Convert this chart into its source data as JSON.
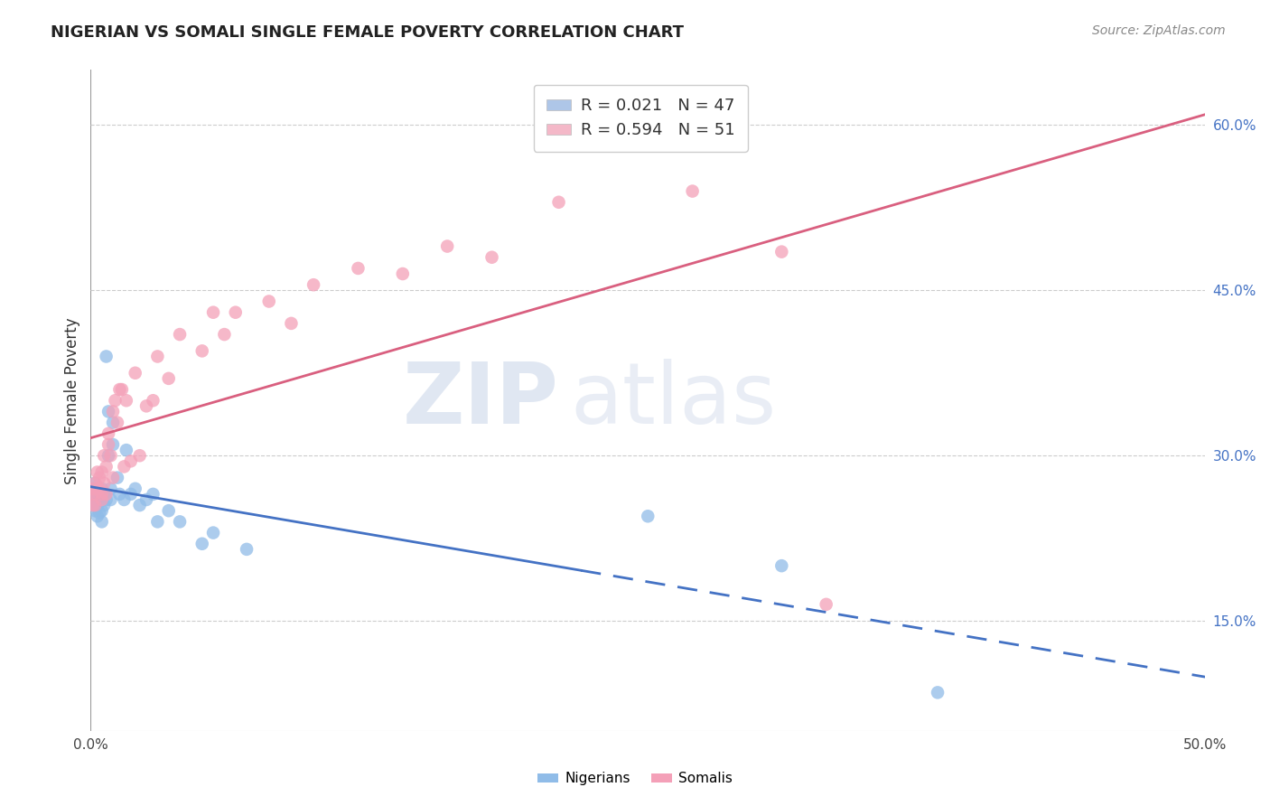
{
  "title": "NIGERIAN VS SOMALI SINGLE FEMALE POVERTY CORRELATION CHART",
  "source": "Source: ZipAtlas.com",
  "ylabel": "Single Female Poverty",
  "right_yticks": [
    0.15,
    0.3,
    0.45,
    0.6
  ],
  "right_ytick_labels": [
    "15.0%",
    "30.0%",
    "45.0%",
    "60.0%"
  ],
  "legend_bottom": [
    "Nigerians",
    "Somalis"
  ],
  "nigerian_color": "#90bce8",
  "somali_color": "#f4a0b8",
  "nigerian_line_color": "#4472c4",
  "somali_line_color": "#d95f7f",
  "watermark_zip": "ZIP",
  "watermark_atlas": "atlas",
  "ylim": [
    0.05,
    0.65
  ],
  "xlim": [
    0.0,
    0.5
  ],
  "nigerian_points_x": [
    0.0005,
    0.001,
    0.001,
    0.001,
    0.002,
    0.002,
    0.002,
    0.002,
    0.003,
    0.003,
    0.003,
    0.003,
    0.004,
    0.004,
    0.004,
    0.005,
    0.005,
    0.005,
    0.005,
    0.006,
    0.006,
    0.007,
    0.007,
    0.008,
    0.008,
    0.009,
    0.009,
    0.01,
    0.01,
    0.012,
    0.013,
    0.015,
    0.016,
    0.018,
    0.02,
    0.022,
    0.025,
    0.028,
    0.03,
    0.035,
    0.04,
    0.05,
    0.055,
    0.07,
    0.25,
    0.31,
    0.38
  ],
  "nigerian_points_y": [
    0.265,
    0.26,
    0.255,
    0.27,
    0.26,
    0.25,
    0.265,
    0.275,
    0.26,
    0.255,
    0.245,
    0.268,
    0.258,
    0.248,
    0.262,
    0.25,
    0.26,
    0.24,
    0.27,
    0.255,
    0.265,
    0.39,
    0.26,
    0.3,
    0.34,
    0.26,
    0.27,
    0.31,
    0.33,
    0.28,
    0.265,
    0.26,
    0.305,
    0.265,
    0.27,
    0.255,
    0.26,
    0.265,
    0.24,
    0.25,
    0.24,
    0.22,
    0.23,
    0.215,
    0.245,
    0.2,
    0.085
  ],
  "somali_points_x": [
    0.0005,
    0.001,
    0.001,
    0.002,
    0.002,
    0.002,
    0.003,
    0.003,
    0.004,
    0.004,
    0.005,
    0.005,
    0.005,
    0.006,
    0.006,
    0.007,
    0.007,
    0.008,
    0.008,
    0.009,
    0.01,
    0.01,
    0.011,
    0.012,
    0.013,
    0.014,
    0.015,
    0.016,
    0.018,
    0.02,
    0.022,
    0.025,
    0.028,
    0.03,
    0.035,
    0.04,
    0.05,
    0.055,
    0.06,
    0.065,
    0.08,
    0.09,
    0.1,
    0.12,
    0.14,
    0.16,
    0.18,
    0.21,
    0.27,
    0.31,
    0.33
  ],
  "somali_points_y": [
    0.265,
    0.255,
    0.27,
    0.265,
    0.275,
    0.255,
    0.27,
    0.285,
    0.27,
    0.28,
    0.265,
    0.26,
    0.285,
    0.275,
    0.3,
    0.29,
    0.265,
    0.32,
    0.31,
    0.3,
    0.34,
    0.28,
    0.35,
    0.33,
    0.36,
    0.36,
    0.29,
    0.35,
    0.295,
    0.375,
    0.3,
    0.345,
    0.35,
    0.39,
    0.37,
    0.41,
    0.395,
    0.43,
    0.41,
    0.43,
    0.44,
    0.42,
    0.455,
    0.47,
    0.465,
    0.49,
    0.48,
    0.53,
    0.54,
    0.485,
    0.165
  ]
}
